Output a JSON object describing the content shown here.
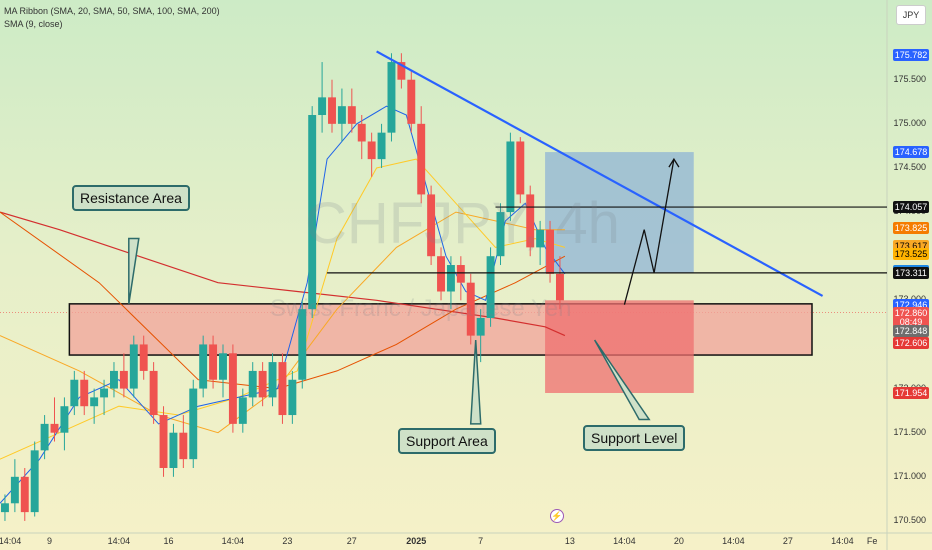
{
  "legend": {
    "line1": "MA Ribbon (SMA, 20, SMA, 50, SMA, 100, SMA, 200)",
    "line2": "SMA (9, close)"
  },
  "currency": "JPY",
  "chart_data": {
    "type": "candlestick",
    "symbol": "CHFJPY",
    "watermark": {
      "symbol": "CHFJPY, 4h",
      "name": "Swiss Franc / Japanese Yen"
    },
    "y_range": [
      170.42,
      175.95
    ],
    "y_ticks": [
      175.5,
      175.0,
      174.5,
      174.0,
      173.5,
      173.0,
      172.5,
      172.0,
      171.5,
      171.0,
      170.5
    ],
    "y_tick_labels": [
      "175.500",
      "175.000",
      "174.500",
      "174.000",
      "173.500",
      "173.000",
      "172.500",
      "172.000",
      "171.500",
      "171.000",
      "170.500"
    ],
    "x_ticks": [
      {
        "label": "14:04",
        "x": 0
      },
      {
        "label": "9",
        "x": 5
      },
      {
        "label": "14:04",
        "x": 12
      },
      {
        "label": "16",
        "x": 17
      },
      {
        "label": "14:04",
        "x": 23.5
      },
      {
        "label": "23",
        "x": 29
      },
      {
        "label": "27",
        "x": 35.5
      },
      {
        "label": "2025",
        "x": 42
      },
      {
        "label": "7",
        "x": 48.5
      },
      {
        "label": "13",
        "x": 57.5
      },
      {
        "label": "14:04",
        "x": 63
      },
      {
        "label": "20",
        "x": 68.5
      },
      {
        "label": "14:04",
        "x": 74
      },
      {
        "label": "27",
        "x": 79.5
      },
      {
        "label": "14:04",
        "x": 85
      },
      {
        "label": "Fe",
        "x": 88
      }
    ],
    "x_range": [
      0,
      89.5
    ],
    "price_labels": [
      {
        "value": 175.782,
        "label": "175.782",
        "color": "#2962ff"
      },
      {
        "value": 174.678,
        "label": "174.678",
        "color": "#2962ff"
      },
      {
        "value": 174.057,
        "label": "174.057",
        "color": "#111111"
      },
      {
        "value": 173.825,
        "label": "173.825",
        "color": "#f57c00"
      },
      {
        "value": 173.617,
        "label": "173.617",
        "color": "#f9a825"
      },
      {
        "value": 173.525,
        "label": "173.525",
        "color": "#ffb300"
      },
      {
        "value": 173.333,
        "label": "173.333",
        "color": "#1e88e5"
      },
      {
        "value": 173.311,
        "label": "173.311",
        "color": "#111111"
      },
      {
        "value": 172.946,
        "label": "172.946",
        "color": "#2962ff"
      },
      {
        "value": 172.86,
        "label": "172.860",
        "color": "#ef5350"
      },
      {
        "value": 172.755,
        "label": "08:49",
        "color": "#ef5350"
      },
      {
        "value": 172.648,
        "label": "172.848",
        "color": "#6d6d6d"
      },
      {
        "value": 172.516,
        "label": "172.606",
        "color": "#e53935"
      },
      {
        "value": 171.954,
        "label": "171.954",
        "color": "#e53935"
      }
    ],
    "candles": [
      [
        170.6,
        170.8,
        170.5,
        170.7
      ],
      [
        170.7,
        171.2,
        170.6,
        171.0
      ],
      [
        171.0,
        171.1,
        170.5,
        170.6
      ],
      [
        170.6,
        171.4,
        170.55,
        171.3
      ],
      [
        171.3,
        171.7,
        171.2,
        171.6
      ],
      [
        171.6,
        171.9,
        171.4,
        171.5
      ],
      [
        171.5,
        171.9,
        171.3,
        171.8
      ],
      [
        171.8,
        172.2,
        171.7,
        172.1
      ],
      [
        172.1,
        172.2,
        171.7,
        171.8
      ],
      [
        171.8,
        172.0,
        171.6,
        171.9
      ],
      [
        171.9,
        172.1,
        171.7,
        172.0
      ],
      [
        172.0,
        172.3,
        171.9,
        172.2
      ],
      [
        172.2,
        172.4,
        171.9,
        172.0
      ],
      [
        172.0,
        172.6,
        171.9,
        172.5
      ],
      [
        172.5,
        172.6,
        172.1,
        172.2
      ],
      [
        172.2,
        172.3,
        171.6,
        171.7
      ],
      [
        171.7,
        171.8,
        171.0,
        171.1
      ],
      [
        171.1,
        171.6,
        171.0,
        171.5
      ],
      [
        171.5,
        171.7,
        171.1,
        171.2
      ],
      [
        171.2,
        172.1,
        171.1,
        172.0
      ],
      [
        172.0,
        172.6,
        171.9,
        172.5
      ],
      [
        172.5,
        172.6,
        172.0,
        172.1
      ],
      [
        172.1,
        172.5,
        171.9,
        172.4
      ],
      [
        172.4,
        172.5,
        171.5,
        171.6
      ],
      [
        171.6,
        172.0,
        171.5,
        171.9
      ],
      [
        171.9,
        172.3,
        171.8,
        172.2
      ],
      [
        172.2,
        172.3,
        171.8,
        171.9
      ],
      [
        171.9,
        172.4,
        171.8,
        172.3
      ],
      [
        172.3,
        172.4,
        171.6,
        171.7
      ],
      [
        171.7,
        172.2,
        171.6,
        172.1
      ],
      [
        172.1,
        173.0,
        172.0,
        172.9
      ],
      [
        172.9,
        175.2,
        172.8,
        175.1
      ],
      [
        175.1,
        175.7,
        174.9,
        175.3
      ],
      [
        175.3,
        175.5,
        174.9,
        175.0
      ],
      [
        175.0,
        175.4,
        174.8,
        175.2
      ],
      [
        175.2,
        175.4,
        174.9,
        175.0
      ],
      [
        175.0,
        175.1,
        174.6,
        174.8
      ],
      [
        174.8,
        174.9,
        174.4,
        174.6
      ],
      [
        174.6,
        175.0,
        174.5,
        174.9
      ],
      [
        174.9,
        175.8,
        174.8,
        175.7
      ],
      [
        175.7,
        175.8,
        175.4,
        175.5
      ],
      [
        175.5,
        175.6,
        174.9,
        175.0
      ],
      [
        175.0,
        175.2,
        174.1,
        174.2
      ],
      [
        174.2,
        174.3,
        173.4,
        173.5
      ],
      [
        173.5,
        173.6,
        173.0,
        173.1
      ],
      [
        173.1,
        173.5,
        172.9,
        173.4
      ],
      [
        173.4,
        173.5,
        173.0,
        173.2
      ],
      [
        173.2,
        173.3,
        172.5,
        172.6
      ],
      [
        172.6,
        172.9,
        172.3,
        172.8
      ],
      [
        172.8,
        173.6,
        172.7,
        173.5
      ],
      [
        173.5,
        174.1,
        173.4,
        174.0
      ],
      [
        174.0,
        174.9,
        173.9,
        174.8
      ],
      [
        174.8,
        174.85,
        174.1,
        174.2
      ],
      [
        174.2,
        174.3,
        173.5,
        173.6
      ],
      [
        173.6,
        173.9,
        173.4,
        173.8
      ],
      [
        173.8,
        173.9,
        173.2,
        173.3
      ],
      [
        173.3,
        173.5,
        172.9,
        173.0
      ]
    ],
    "sma_9": [
      [
        0,
        170.7
      ],
      [
        4,
        171.2
      ],
      [
        8,
        171.9
      ],
      [
        12,
        172.1
      ],
      [
        16,
        171.6
      ],
      [
        20,
        171.8
      ],
      [
        24,
        171.9
      ],
      [
        28,
        172.0
      ],
      [
        31,
        173.2
      ],
      [
        33,
        174.6
      ],
      [
        36,
        175.0
      ],
      [
        39,
        175.2
      ],
      [
        41,
        175.1
      ],
      [
        43,
        174.3
      ],
      [
        45,
        173.5
      ],
      [
        47,
        173.1
      ],
      [
        49,
        173.0
      ],
      [
        51,
        173.9
      ],
      [
        53,
        174.1
      ],
      [
        55,
        173.6
      ],
      [
        57,
        173.3
      ]
    ],
    "sma_20": [
      [
        0,
        171.2
      ],
      [
        6,
        171.5
      ],
      [
        12,
        171.8
      ],
      [
        18,
        171.7
      ],
      [
        24,
        171.9
      ],
      [
        30,
        172.2
      ],
      [
        34,
        173.7
      ],
      [
        38,
        174.5
      ],
      [
        42,
        174.6
      ],
      [
        46,
        174.1
      ],
      [
        50,
        173.6
      ],
      [
        54,
        173.7
      ],
      [
        57,
        173.6
      ]
    ],
    "sma_50": [
      [
        0,
        172.6
      ],
      [
        8,
        172.2
      ],
      [
        16,
        171.7
      ],
      [
        22,
        171.5
      ],
      [
        28,
        172.0
      ],
      [
        34,
        172.9
      ],
      [
        40,
        173.6
      ],
      [
        46,
        174.0
      ],
      [
        50,
        173.9
      ],
      [
        54,
        173.8
      ],
      [
        57,
        173.8
      ]
    ],
    "sma_100": [
      [
        0,
        174.0
      ],
      [
        10,
        173.2
      ],
      [
        20,
        172.1
      ],
      [
        28,
        172.0
      ],
      [
        34,
        172.2
      ],
      [
        40,
        172.5
      ],
      [
        46,
        172.9
      ],
      [
        52,
        173.2
      ],
      [
        57,
        173.5
      ]
    ],
    "sma_200": [
      [
        0,
        174.0
      ],
      [
        6,
        173.8
      ],
      [
        14,
        173.5
      ],
      [
        22,
        173.2
      ],
      [
        30,
        173.1
      ],
      [
        38,
        173.0
      ],
      [
        44,
        172.9
      ],
      [
        50,
        172.8
      ],
      [
        55,
        172.7
      ],
      [
        57,
        172.6
      ]
    ],
    "zones": [
      {
        "x0": 7,
        "x1": 90,
        "y0": 172.38,
        "y1": 172.96,
        "fill": "#f2a39a",
        "stroke": "#111111"
      },
      {
        "x0": 55,
        "x1": 70,
        "y0": 173.31,
        "y1": 174.68,
        "fill": "#8fb4d6",
        "stroke": "none"
      },
      {
        "x0": 55,
        "x1": 70,
        "y0": 171.95,
        "y1": 173.0,
        "fill": "#ef6f6f",
        "stroke": "none"
      }
    ],
    "trendline": {
      "x0": 38,
      "y0": 175.82,
      "x1": 83,
      "y1": 173.05,
      "color": "#2962ff"
    },
    "hlines": [
      {
        "x0": 50,
        "value": 174.057
      },
      {
        "x0": 33,
        "value": 173.311
      }
    ],
    "projection": [
      [
        63,
        172.95
      ],
      [
        65,
        173.8
      ],
      [
        66,
        173.311
      ],
      [
        68,
        174.6
      ]
    ],
    "annotations": {
      "resistance": "Resistance Area",
      "support_area": "Support Area",
      "support_level": "Support Level"
    },
    "callout_pointers": [
      {
        "from": [
          13.5,
          173.7
        ],
        "to": [
          13,
          172.96
        ]
      },
      {
        "from": [
          48,
          171.6
        ],
        "to": [
          48,
          172.55
        ]
      },
      {
        "from": [
          65,
          171.65
        ],
        "to": [
          60,
          172.55
        ]
      }
    ]
  }
}
